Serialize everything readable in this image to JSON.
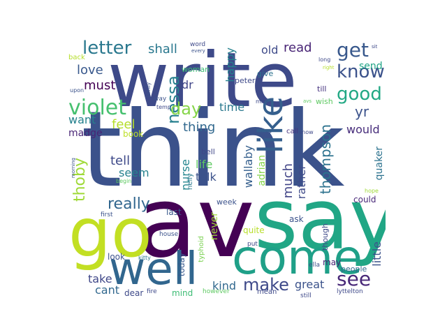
{
  "words": [
    {
      "id": "think",
      "text": "think",
      "color": "#3b528b"
    },
    {
      "id": "write",
      "text": "write",
      "color": "#3e4a89"
    },
    {
      "id": "av",
      "text": "av",
      "color": "#440154"
    },
    {
      "id": "say",
      "text": "say",
      "color": "#21a685"
    },
    {
      "id": "go",
      "text": "go",
      "color": "#c2df23"
    },
    {
      "id": "come",
      "text": "come",
      "color": "#1fa088"
    },
    {
      "id": "well",
      "text": "well",
      "color": "#31668e"
    },
    {
      "id": "like",
      "text": "like",
      "color": "#355f8d"
    },
    {
      "id": "violet",
      "text": "violet",
      "color": "#46c06f"
    },
    {
      "id": "get",
      "text": "get",
      "color": "#38588c"
    },
    {
      "id": "know",
      "text": "know",
      "color": "#3b528b"
    },
    {
      "id": "good",
      "text": "good",
      "color": "#22a884"
    },
    {
      "id": "letter",
      "text": "letter",
      "color": "#2a788e"
    },
    {
      "id": "nessa",
      "text": "nessa",
      "color": "#27808e"
    },
    {
      "id": "day",
      "text": "day",
      "color": "#86d549"
    },
    {
      "id": "make",
      "text": "make",
      "color": "#3e4989"
    },
    {
      "id": "see",
      "text": "see",
      "color": "#482878"
    },
    {
      "id": "thoby",
      "text": "thoby",
      "color": "#a0da39"
    },
    {
      "id": "thompson",
      "text": "thompson",
      "color": "#2c728e"
    },
    {
      "id": "shall",
      "text": "shall",
      "color": "#2a788e"
    },
    {
      "id": "old",
      "text": "old",
      "color": "#3e4a89"
    },
    {
      "id": "read",
      "text": "read",
      "color": "#482475"
    },
    {
      "id": "love",
      "text": "love",
      "color": "#38588c"
    },
    {
      "id": "must",
      "text": "must",
      "color": "#440154"
    },
    {
      "id": "dr",
      "text": "dr",
      "color": "#404588"
    },
    {
      "id": "happy",
      "text": "happy",
      "color": "#26828e"
    },
    {
      "id": "feel",
      "text": "feel",
      "color": "#b5de2b"
    },
    {
      "id": "want",
      "text": "want",
      "color": "#26828e"
    },
    {
      "id": "madge",
      "text": "madge",
      "color": "#482475"
    },
    {
      "id": "book",
      "text": "book",
      "color": "#bddf26"
    },
    {
      "id": "thing",
      "text": "thing",
      "color": "#31688e"
    },
    {
      "id": "time",
      "text": "time",
      "color": "#2a788e"
    },
    {
      "id": "yr",
      "text": "yr",
      "color": "#3b528b"
    },
    {
      "id": "would",
      "text": "would",
      "color": "#472d7b"
    },
    {
      "id": "send",
      "text": "send",
      "color": "#20a486"
    },
    {
      "id": "really",
      "text": "really",
      "color": "#31668e"
    },
    {
      "id": "tell",
      "text": "tell",
      "color": "#3e4989"
    },
    {
      "id": "seem",
      "text": "seem",
      "color": "#26828e"
    },
    {
      "id": "nurse",
      "text": "nurse",
      "color": "#24868e"
    },
    {
      "id": "life",
      "text": "life",
      "color": "#5ec962"
    },
    {
      "id": "talk",
      "text": "talk",
      "color": "#3b528b"
    },
    {
      "id": "wallaby",
      "text": "wallaby",
      "color": "#355f8d"
    },
    {
      "id": "adrian",
      "text": "adrian",
      "color": "#84d44b"
    },
    {
      "id": "much",
      "text": "much",
      "color": "#414487"
    },
    {
      "id": "rather",
      "text": "rather",
      "color": "#3e4a89"
    },
    {
      "id": "quaker",
      "text": "quaker",
      "color": "#2c728e"
    },
    {
      "id": "little",
      "text": "little",
      "color": "#3b528b"
    },
    {
      "id": "could",
      "text": "could",
      "color": "#482878"
    },
    {
      "id": "ask",
      "text": "ask",
      "color": "#3b528b"
    },
    {
      "id": "quite",
      "text": "quite",
      "color": "#b8de29"
    },
    {
      "id": "never",
      "text": "never",
      "color": "#a0da39"
    },
    {
      "id": "kind",
      "text": "kind",
      "color": "#31688e"
    },
    {
      "id": "great",
      "text": "great",
      "color": "#3b528b"
    },
    {
      "id": "take",
      "text": "take",
      "color": "#3f4788"
    },
    {
      "id": "cant",
      "text": "cant",
      "color": "#31688e"
    },
    {
      "id": "today",
      "text": "today",
      "color": "#38588c"
    },
    {
      "id": "look",
      "text": "look",
      "color": "#3b528b"
    },
    {
      "id": "mind",
      "text": "mind",
      "color": "#3dbc74"
    },
    {
      "id": "dear",
      "text": "dear",
      "color": "#3e4989"
    },
    {
      "id": "may",
      "text": "may",
      "color": "#482173"
    },
    {
      "id": "people",
      "text": "people",
      "color": "#31688e"
    },
    {
      "id": "though",
      "text": "though",
      "color": "#3e4989"
    },
    {
      "id": "last",
      "text": "last",
      "color": "#38588c"
    },
    {
      "id": "woman",
      "text": "woman",
      "color": "#3dbc74"
    },
    {
      "id": "peter",
      "text": "peter",
      "color": "#3e4989"
    },
    {
      "id": "give",
      "text": "give",
      "color": "#2c728e"
    },
    {
      "id": "till",
      "text": "till",
      "color": "#46337f"
    },
    {
      "id": "wish",
      "text": "wish",
      "color": "#5ec962"
    },
    {
      "id": "week",
      "text": "week",
      "color": "#3b528b"
    },
    {
      "id": "bell",
      "text": "bell",
      "color": "#3f4788"
    },
    {
      "id": "nelly",
      "text": "nelly",
      "color": "#2a788e"
    },
    {
      "id": "typhoid",
      "text": "typhoid",
      "color": "#7ad151"
    },
    {
      "id": "mean",
      "text": "mean",
      "color": "#3e4989"
    },
    {
      "id": "call",
      "text": "call",
      "color": "#46337f"
    },
    {
      "id": "put",
      "text": "put",
      "color": "#3e4989"
    },
    {
      "id": "ella",
      "text": "ella",
      "color": "#3b528b"
    },
    {
      "id": "fire",
      "text": "fire",
      "color": "#3e4989"
    },
    {
      "id": "however",
      "text": "however",
      "color": "#5ec962"
    },
    {
      "id": "still",
      "text": "still",
      "color": "#3e4989"
    },
    {
      "id": "lyttelton",
      "text": "lyttelton",
      "color": "#3e4989"
    },
    {
      "id": "house",
      "text": "house",
      "color": "#3b528b"
    },
    {
      "id": "first",
      "text": "first",
      "color": "#3b528b"
    },
    {
      "id": "kitty",
      "text": "kitty",
      "color": "#2a788e"
    },
    {
      "id": "morning",
      "text": "morning",
      "color": "#3b528b"
    },
    {
      "id": "begin",
      "text": "begin",
      "color": "#5ec962"
    },
    {
      "id": "hope",
      "text": "hope",
      "color": "#a0da39"
    },
    {
      "id": "night",
      "text": "night",
      "color": "#3b528b"
    },
    {
      "id": "snow",
      "text": "snow",
      "color": "#3e4989"
    },
    {
      "id": "miss",
      "text": "miss",
      "color": "#3e4989"
    },
    {
      "id": "avs",
      "text": "avs",
      "color": "#5ec962"
    },
    {
      "id": "way",
      "text": "way",
      "color": "#3b528b"
    },
    {
      "id": "temp",
      "text": "temp",
      "color": "#3e4989"
    },
    {
      "id": "family",
      "text": "family",
      "color": "#3b528b"
    },
    {
      "id": "word",
      "text": "word",
      "color": "#3e4989"
    },
    {
      "id": "every",
      "text": "every",
      "color": "#3b528b"
    },
    {
      "id": "back",
      "text": "back",
      "color": "#b5de2b"
    },
    {
      "id": "upon",
      "text": "upon",
      "color": "#3b528b"
    },
    {
      "id": "long",
      "text": "long",
      "color": "#3e4989"
    },
    {
      "id": "right",
      "text": "right",
      "color": "#b5de2b"
    },
    {
      "id": "sit",
      "text": "sit",
      "color": "#3e4989"
    }
  ]
}
